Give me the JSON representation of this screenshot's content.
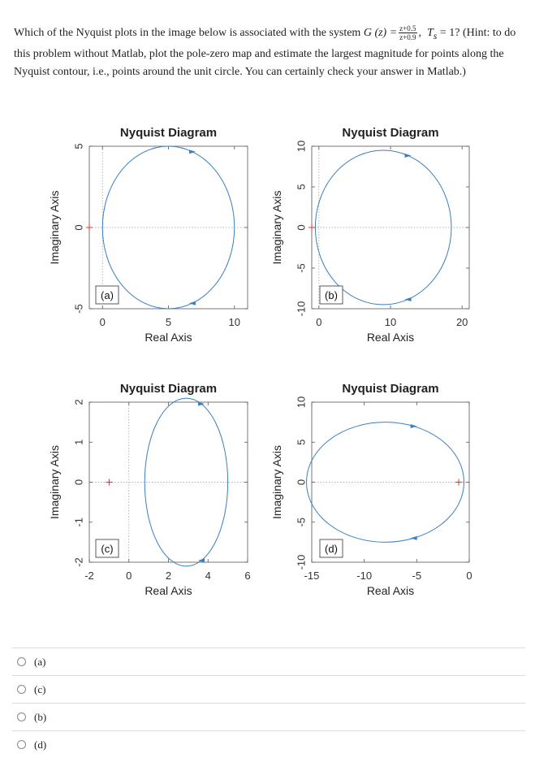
{
  "question": {
    "part1": "Which of the Nyquist plots in the image below is associated with the system ",
    "g_label": "G (z) =",
    "frac_num": "z+0.5",
    "frac_den": "z+0.9",
    "ts_label": "T",
    "ts_sub": "s",
    "ts_value": " = 1?",
    "part2": " (Hint: to do this problem without Matlab, plot the pole-zero map and estimate the largest magnitude for points along the Nyquist contour, i.e., points around the unit circle. You can certainly check your answer in Matlab.)"
  },
  "chart_data": [
    {
      "type": "line",
      "title": "Nyquist Diagram",
      "xlabel": "Real Axis",
      "ylabel": "Imaginary Axis",
      "xlim": [
        -1,
        11
      ],
      "ylim": [
        -5,
        5
      ],
      "xticks": [
        0,
        5,
        10
      ],
      "yticks": [
        -5,
        0,
        5
      ],
      "tag": "(a)",
      "curve": {
        "type": "circle",
        "center": [
          5,
          0
        ],
        "radius": 5
      },
      "critical_point": [
        -1,
        0
      ],
      "series_color": "#3a7fbf",
      "marker_color": "#e03030"
    },
    {
      "type": "line",
      "title": "Nyquist Diagram",
      "xlabel": "Real Axis",
      "ylabel": "Imaginary Axis",
      "xlim": [
        -1,
        21
      ],
      "ylim": [
        -10,
        10
      ],
      "xticks": [
        0,
        10,
        20
      ],
      "yticks": [
        -10,
        -5,
        0,
        5,
        10
      ],
      "tag": "(b)",
      "curve": {
        "type": "circle",
        "center": [
          9,
          0
        ],
        "radius": 9.5
      },
      "critical_point": [
        -1,
        0
      ],
      "series_color": "#3a7fbf",
      "marker_color": "#e03030"
    },
    {
      "type": "line",
      "title": "Nyquist Diagram",
      "xlabel": "Real Axis",
      "ylabel": "Imaginary Axis",
      "xlim": [
        -2,
        6
      ],
      "ylim": [
        -2,
        2
      ],
      "xticks": [
        -2,
        0,
        2,
        4,
        6
      ],
      "yticks": [
        -2,
        -1,
        0,
        1,
        2
      ],
      "tag": "(c)",
      "curve": {
        "type": "circle",
        "center": [
          2.9,
          0
        ],
        "radius": 2.1
      },
      "critical_point": [
        -1,
        0
      ],
      "series_color": "#3a7fbf",
      "marker_color": "#e03030"
    },
    {
      "type": "line",
      "title": "Nyquist Diagram",
      "xlabel": "Real Axis",
      "ylabel": "Imaginary Axis",
      "xlim": [
        -15,
        0
      ],
      "ylim": [
        -10,
        10
      ],
      "xticks": [
        -15,
        -10,
        -5,
        0
      ],
      "yticks": [
        -10,
        -5,
        0,
        5,
        10
      ],
      "tag": "(d)",
      "curve": {
        "type": "circle",
        "center": [
          -8,
          0
        ],
        "radius": 7.5
      },
      "critical_point": [
        -1,
        0
      ],
      "series_color": "#3a7fbf",
      "marker_color": "#e03030"
    }
  ],
  "options": [
    {
      "label": "(a)"
    },
    {
      "label": "(c)"
    },
    {
      "label": "(b)"
    },
    {
      "label": "(d)"
    }
  ]
}
